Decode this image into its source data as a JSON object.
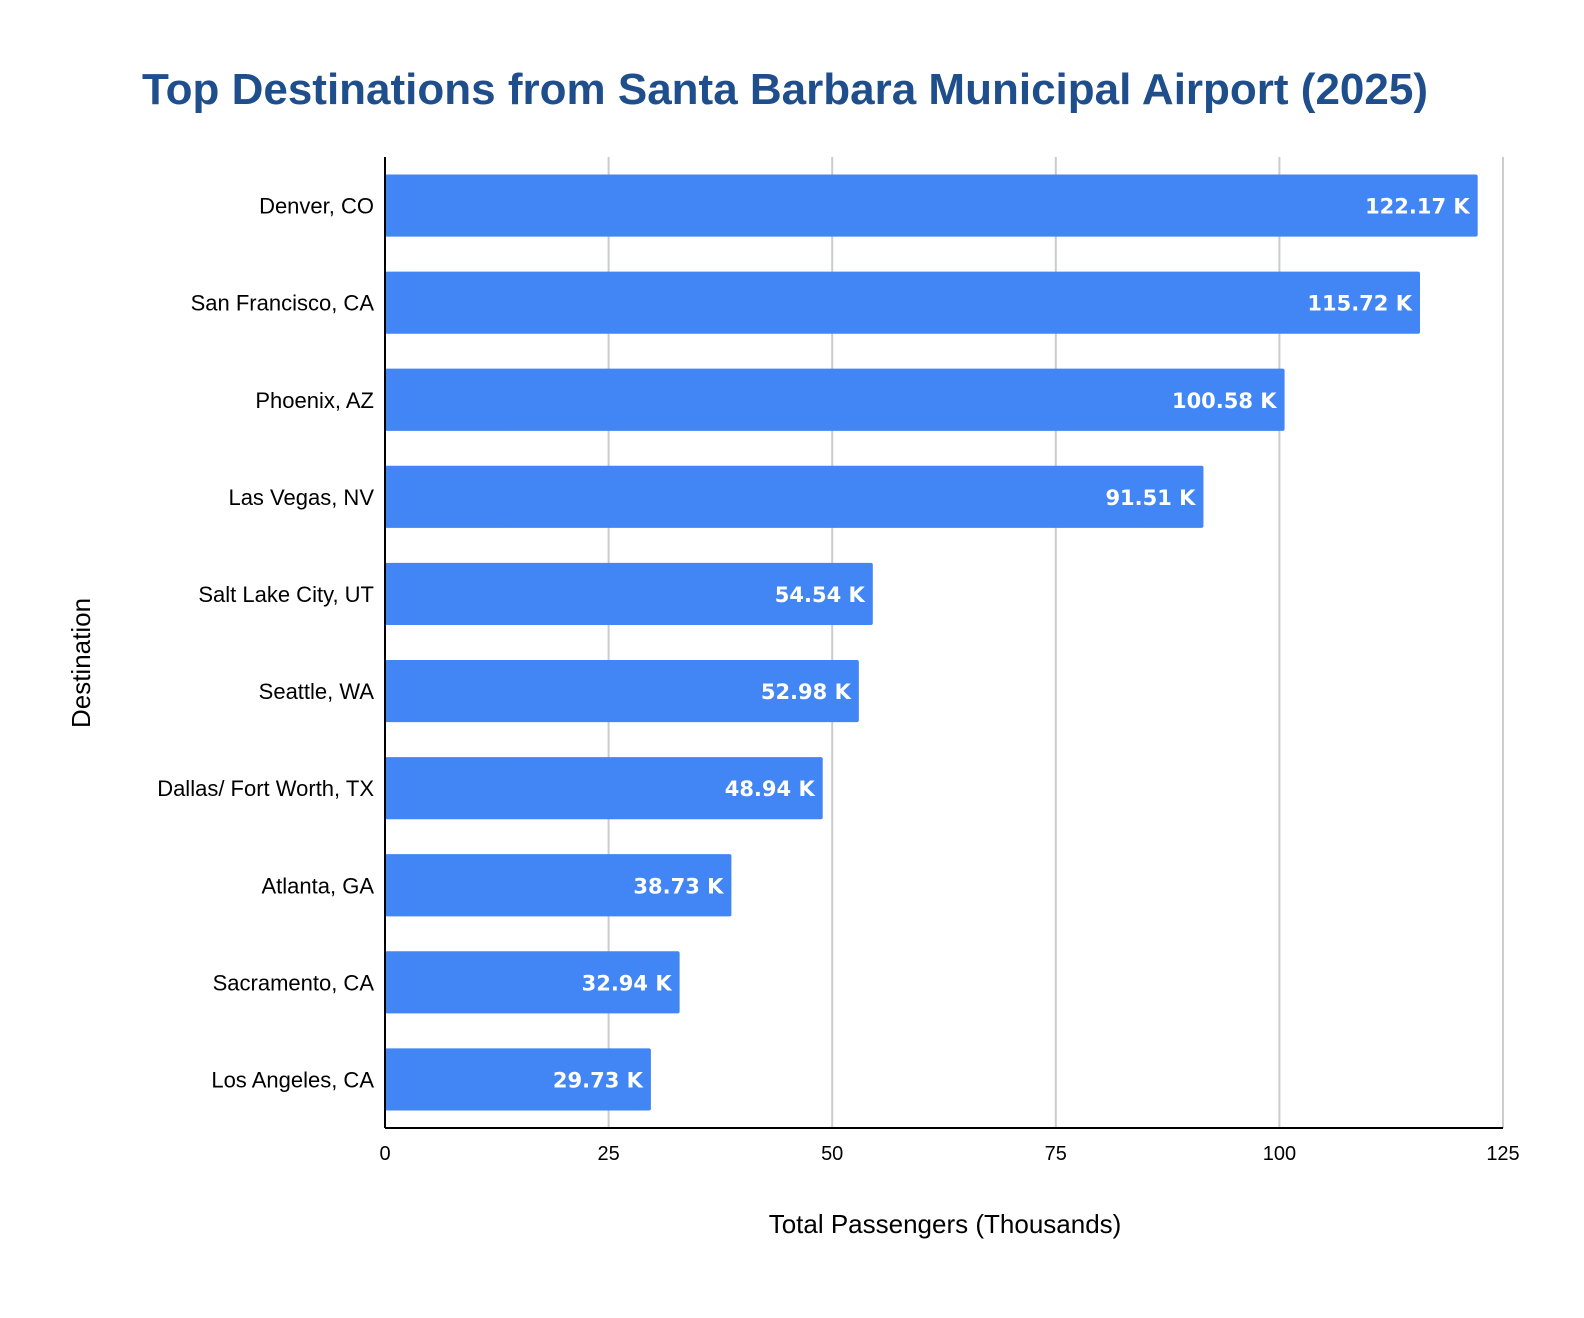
{
  "chart_data": {
    "type": "bar",
    "orientation": "horizontal",
    "title": "Top Destinations from Santa Barbara Municipal Airport (2025)",
    "xlabel": "Total Passengers (Thousands)",
    "ylabel": "Destination",
    "categories": [
      "Denver, CO",
      "San Francisco, CA",
      "Phoenix, AZ",
      "Las Vegas, NV",
      "Salt Lake City, UT",
      "Seattle, WA",
      "Dallas/ Fort Worth, TX",
      "Atlanta, GA",
      "Sacramento, CA",
      "Los Angeles, CA"
    ],
    "values": [
      122.17,
      115.72,
      100.58,
      91.51,
      54.54,
      52.98,
      48.94,
      38.73,
      32.94,
      29.73
    ],
    "data_labels": [
      "122.17 K",
      "115.72 K",
      "100.58 K",
      "91.51 K",
      "54.54 K",
      "52.98 K",
      "48.94 K",
      "38.73 K",
      "32.94 K",
      "29.73 K"
    ],
    "xlim": [
      0,
      125
    ],
    "xticks": [
      0,
      25,
      50,
      75,
      100,
      125
    ],
    "grid": true,
    "legend": "none",
    "colors": {
      "bar": "#4285f4",
      "title": "#1f4e8c",
      "grid": "#cccccc",
      "data_label": "#ffffff"
    }
  }
}
